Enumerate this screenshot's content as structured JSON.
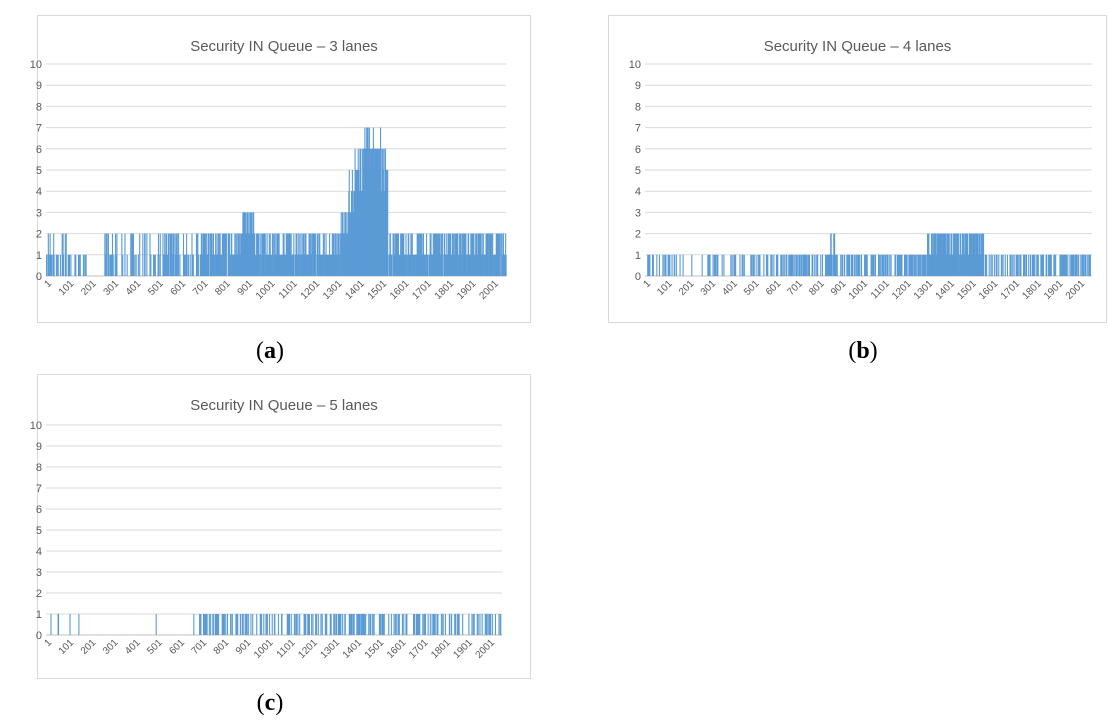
{
  "chart_data": [
    {
      "type": "bar",
      "title": "Security IN Queue – 3 lanes",
      "caption_label": "a",
      "xlabel": "",
      "ylabel": "",
      "ylim": [
        0,
        10
      ],
      "y_ticks": [
        0,
        1,
        2,
        3,
        4,
        5,
        6,
        7,
        8,
        9,
        10
      ],
      "x_range": [
        1,
        2060
      ],
      "x_ticks": [
        "1",
        "101",
        "201",
        "301",
        "401",
        "501",
        "601",
        "701",
        "801",
        "901",
        "1001",
        "1101",
        "1201",
        "1301",
        "1401",
        "1501",
        "1601",
        "1701",
        "1801",
        "1901",
        "2001"
      ],
      "grid": true,
      "color": "#5b9bd5",
      "series": [
        {
          "segments": [
            {
              "start": 1,
              "end": 90,
              "base": 1,
              "peak": 2,
              "density": 0.4
            },
            {
              "start": 90,
              "end": 180,
              "base": 1,
              "peak": 1,
              "density": 0.25
            },
            {
              "start": 180,
              "end": 260,
              "base": 0,
              "peak": 1,
              "density": 0.05
            },
            {
              "start": 260,
              "end": 440,
              "base": 1,
              "peak": 2,
              "density": 0.3
            },
            {
              "start": 440,
              "end": 520,
              "base": 1,
              "peak": 2,
              "density": 0.4
            },
            {
              "start": 520,
              "end": 600,
              "base": 1,
              "peak": 2,
              "density": 0.7
            },
            {
              "start": 600,
              "end": 690,
              "base": 1,
              "peak": 2,
              "density": 0.35
            },
            {
              "start": 690,
              "end": 830,
              "base": 1,
              "peak": 2,
              "density": 0.9
            },
            {
              "start": 830,
              "end": 880,
              "base": 1,
              "peak": 2,
              "density": 1.0
            },
            {
              "start": 880,
              "end": 930,
              "base": 2,
              "peak": 3,
              "density": 1.0
            },
            {
              "start": 930,
              "end": 1320,
              "base": 1,
              "peak": 2,
              "density": 0.85
            },
            {
              "start": 1320,
              "end": 1350,
              "base": 2,
              "peak": 3,
              "density": 1.0
            },
            {
              "start": 1350,
              "end": 1380,
              "base": 3,
              "peak": 5,
              "density": 1.0
            },
            {
              "start": 1380,
              "end": 1420,
              "base": 4,
              "peak": 6,
              "density": 1.0
            },
            {
              "start": 1420,
              "end": 1460,
              "base": 5,
              "peak": 7,
              "density": 1.0
            },
            {
              "start": 1460,
              "end": 1500,
              "base": 5,
              "peak": 7,
              "density": 1.0
            },
            {
              "start": 1500,
              "end": 1530,
              "base": 4,
              "peak": 6,
              "density": 1.0
            },
            {
              "start": 1530,
              "end": 1560,
              "base": 1,
              "peak": 2,
              "density": 0.6
            },
            {
              "start": 1560,
              "end": 1660,
              "base": 1,
              "peak": 2,
              "density": 0.85
            },
            {
              "start": 1660,
              "end": 1890,
              "base": 1,
              "peak": 2,
              "density": 0.95
            },
            {
              "start": 1890,
              "end": 2060,
              "base": 1,
              "peak": 2,
              "density": 0.85
            }
          ]
        }
      ]
    },
    {
      "type": "bar",
      "title": "Security IN Queue – 4 lanes",
      "caption_label": "b",
      "xlabel": "",
      "ylabel": "",
      "ylim": [
        0,
        10
      ],
      "y_ticks": [
        0,
        1,
        2,
        3,
        4,
        5,
        6,
        7,
        8,
        9,
        10
      ],
      "x_range": [
        1,
        2060
      ],
      "x_ticks": [
        "1",
        "101",
        "201",
        "301",
        "401",
        "501",
        "601",
        "701",
        "801",
        "901",
        "1001",
        "1101",
        "1201",
        "1301",
        "1401",
        "1501",
        "1601",
        "1701",
        "1801",
        "1901",
        "2001"
      ],
      "grid": true,
      "color": "#5b9bd5",
      "series": [
        {
          "segments": [
            {
              "start": 1,
              "end": 160,
              "base": 0,
              "peak": 1,
              "density": 0.45
            },
            {
              "start": 160,
              "end": 290,
              "base": 0,
              "peak": 1,
              "density": 0.08
            },
            {
              "start": 290,
              "end": 560,
              "base": 0,
              "peak": 1,
              "density": 0.55
            },
            {
              "start": 560,
              "end": 840,
              "base": 0,
              "peak": 1,
              "density": 0.7
            },
            {
              "start": 840,
              "end": 880,
              "base": 1,
              "peak": 2,
              "density": 0.9
            },
            {
              "start": 880,
              "end": 1300,
              "base": 0,
              "peak": 1,
              "density": 0.85
            },
            {
              "start": 1300,
              "end": 1420,
              "base": 1,
              "peak": 2,
              "density": 1.0
            },
            {
              "start": 1420,
              "end": 1560,
              "base": 1,
              "peak": 2,
              "density": 0.9
            },
            {
              "start": 1560,
              "end": 2060,
              "base": 0,
              "peak": 1,
              "density": 0.8
            }
          ]
        }
      ]
    },
    {
      "type": "bar",
      "title": "Security IN Queue – 5 lanes",
      "caption_label": "c",
      "xlabel": "",
      "ylabel": "",
      "ylim": [
        0,
        10
      ],
      "y_ticks": [
        0,
        1,
        2,
        3,
        4,
        5,
        6,
        7,
        8,
        9,
        10
      ],
      "x_range": [
        1,
        2060
      ],
      "x_ticks": [
        "1",
        "101",
        "201",
        "301",
        "401",
        "501",
        "601",
        "701",
        "801",
        "901",
        "1001",
        "1101",
        "1201",
        "1301",
        "1401",
        "1501",
        "1601",
        "1701",
        "1801",
        "1901",
        "2001"
      ],
      "grid": true,
      "color": "#5b9bd5",
      "series": [
        {
          "segments": [
            {
              "start": 1,
              "end": 160,
              "base": 0,
              "peak": 1,
              "density": 0.12
            },
            {
              "start": 160,
              "end": 680,
              "base": 0,
              "peak": 1,
              "density": 0.04
            },
            {
              "start": 680,
              "end": 1300,
              "base": 0,
              "peak": 1,
              "density": 0.6
            },
            {
              "start": 1300,
              "end": 1560,
              "base": 0,
              "peak": 1,
              "density": 0.85
            },
            {
              "start": 1560,
              "end": 2060,
              "base": 0,
              "peak": 1,
              "density": 0.55
            }
          ]
        }
      ]
    }
  ]
}
